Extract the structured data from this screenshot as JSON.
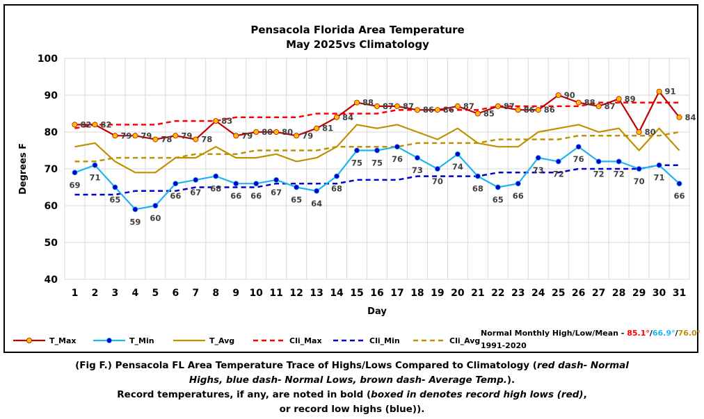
{
  "chart_data": {
    "type": "line",
    "title": "Pensacola Florida Area Temperature",
    "subtitle": "May 2025vs Climatology",
    "xlabel": "Day",
    "ylabel": "Degrees F",
    "ylim": [
      40,
      100
    ],
    "yticks": [
      40,
      50,
      60,
      70,
      80,
      90,
      100
    ],
    "grid": true,
    "legend_position": "bottom",
    "x": [
      1,
      2,
      3,
      4,
      5,
      6,
      7,
      8,
      9,
      10,
      11,
      12,
      13,
      14,
      15,
      16,
      17,
      18,
      19,
      20,
      21,
      22,
      23,
      24,
      25,
      26,
      27,
      28,
      29,
      30,
      31
    ],
    "series": [
      {
        "name": "T_Max",
        "color": "#c00000",
        "marker_color": "#ffc000",
        "style": "solid-markers",
        "labels": true,
        "values": [
          82,
          82,
          79,
          79,
          78,
          79,
          78,
          83,
          79,
          80,
          80,
          79,
          81,
          84,
          88,
          87,
          87,
          86,
          86,
          87,
          85,
          87,
          86,
          86,
          90,
          88,
          87,
          89,
          80,
          91,
          84
        ]
      },
      {
        "name": "T_Min",
        "color": "#1eb4f0",
        "marker_color": "#0000c8",
        "style": "solid-markers",
        "labels": true,
        "values": [
          69,
          71,
          65,
          59,
          60,
          66,
          67,
          68,
          66,
          66,
          67,
          65,
          64,
          68,
          75,
          75,
          76,
          73,
          70,
          74,
          68,
          65,
          66,
          73,
          72,
          76,
          72,
          72,
          70,
          71,
          66
        ]
      },
      {
        "name": "T_Avg",
        "color": "#bf9000",
        "style": "solid",
        "values": [
          76,
          77,
          72,
          69,
          69,
          73,
          73,
          76,
          73,
          73,
          74,
          72,
          73,
          76,
          82,
          81,
          82,
          80,
          78,
          81,
          77,
          76,
          76,
          80,
          81,
          82,
          80,
          81,
          75,
          81,
          75
        ]
      },
      {
        "name": "Cli_Max",
        "color": "#ff0000",
        "style": "dashed",
        "values": [
          81,
          82,
          82,
          82,
          82,
          83,
          83,
          83,
          84,
          84,
          84,
          84,
          85,
          85,
          85,
          85,
          86,
          86,
          86,
          86,
          86,
          87,
          87,
          87,
          87,
          87,
          88,
          88,
          88,
          88,
          88
        ]
      },
      {
        "name": "Cli_Min",
        "color": "#0000cc",
        "style": "dashed",
        "values": [
          63,
          63,
          63,
          64,
          64,
          64,
          65,
          65,
          65,
          65,
          66,
          66,
          66,
          66,
          67,
          67,
          67,
          68,
          68,
          68,
          68,
          69,
          69,
          69,
          69,
          70,
          70,
          70,
          70,
          71,
          71
        ]
      },
      {
        "name": "Cli_Avg",
        "color": "#bf9000",
        "style": "dashed",
        "values": [
          72,
          72,
          73,
          73,
          73,
          73,
          74,
          74,
          74,
          75,
          75,
          75,
          75,
          76,
          76,
          76,
          76,
          77,
          77,
          77,
          77,
          78,
          78,
          78,
          78,
          79,
          79,
          79,
          79,
          79,
          80
        ]
      }
    ],
    "normals_note": {
      "prefix": "Normal Monthly High/Low/Mean - ",
      "high": "85.1°",
      "low": "66.9°",
      "mean": "76.0°",
      "sep": "/",
      "high_color": "#ff0000",
      "low_color": "#1eb4f0",
      "mean_color": "#bf9000",
      "period": "1991-2020"
    }
  },
  "caption": {
    "line1_a": "(Fig F.) Pensacola FL Area Temperature Trace of Highs/Lows Compared to Climatology (",
    "line1_b": "red dash- Normal",
    "line2_a": "Highs, blue dash- Normal Lows, brown dash- Average Temp.",
    "line2_b": ").",
    "line3_a": "Record temperatures, if any, are noted in bold (",
    "line3_b": "boxed in denotes record high lows (red)",
    "line3_c": ",",
    "line4": "or record low highs (blue))."
  }
}
